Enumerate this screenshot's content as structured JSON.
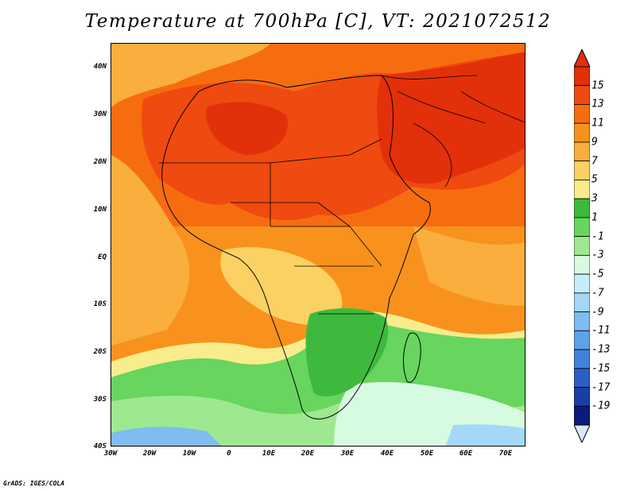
{
  "title": "Temperature at 700hPa [C], VT: 2021072512",
  "credit": "GrADS: IGES/COLA",
  "map": {
    "lat_labels": [
      "40N",
      "30N",
      "20N",
      "10N",
      "EQ",
      "10S",
      "20S",
      "30S",
      "40S"
    ],
    "lon_labels": [
      "30W",
      "20W",
      "10W",
      "0",
      "10E",
      "20E",
      "30E",
      "40E",
      "50E",
      "60E",
      "70E"
    ]
  },
  "colorbar": {
    "labels": [
      "15",
      "13",
      "11",
      "9",
      "7",
      "5",
      "3",
      "1",
      "-1",
      "-3",
      "-5",
      "-7",
      "-9",
      "-11",
      "-13",
      "-15",
      "-17",
      "-19"
    ],
    "colors": [
      "#e2300a",
      "#ef4a0f",
      "#f66d10",
      "#f8921d",
      "#f9ae3e",
      "#fcd164",
      "#f9ec8c",
      "#3dba3d",
      "#67d55e",
      "#9ee890",
      "#d7fbe0",
      "#c4eefc",
      "#a3d8f8",
      "#7ebcf2",
      "#5fa2ea",
      "#4382dc",
      "#2a5fc8",
      "#1a3ea8",
      "#0a1c78"
    ]
  }
}
